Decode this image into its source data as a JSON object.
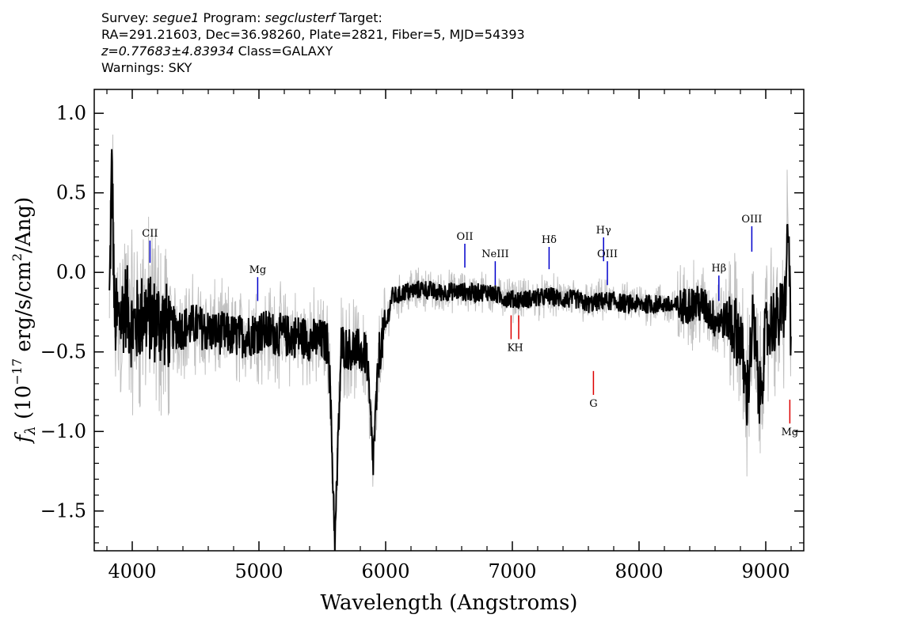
{
  "header": {
    "line1": {
      "survey_label": "Survey: ",
      "survey": "segue1",
      "program_label": " Program: ",
      "program": "segclusterf",
      "target_label": " Target:"
    },
    "line2": "RA=291.21603, Dec=36.98260, Plate=2821, Fiber=5, MJD=54393",
    "line3": {
      "z": "z=0.77683±4.83934",
      "class": " Class=GALAXY"
    },
    "line4": "Warnings: SKY"
  },
  "chart_data": {
    "type": "line",
    "xlabel": "Wavelength (Angstroms)",
    "ylabel": "f_λ (10^-17 erg/s/cm²/Ang)",
    "ylabel_parts": {
      "f": "f",
      "lambda": "λ",
      "pre": " (10",
      "exp": "−17",
      "mid": " erg/s/cm",
      "exp2": "2",
      "post": "/Ang)"
    },
    "xlim": [
      3700,
      9300
    ],
    "ylim": [
      -1.75,
      1.15
    ],
    "xticks": [
      4000,
      5000,
      6000,
      7000,
      8000,
      9000
    ],
    "xtick_labels": [
      "4000",
      "5000",
      "6000",
      "7000",
      "8000",
      "9000"
    ],
    "yticks": [
      1.0,
      0.5,
      0.0,
      -0.5,
      -1.0,
      -1.5
    ],
    "ytick_labels": [
      "1.0",
      "0.5",
      "0.0",
      "−0.5",
      "−1.0",
      "−1.5"
    ],
    "colors": {
      "flux": "#000000",
      "error_band": "#c0c0c0",
      "emission_line": "#0000cc",
      "absorption_line": "#dd0000"
    },
    "series": [
      {
        "role": "flux",
        "x": [
          3820,
          3840,
          3860,
          3900,
          3950,
          4000,
          4050,
          4100,
          4150,
          4200,
          4300,
          4400,
          4500,
          4600,
          4700,
          4800,
          4900,
          5000,
          5100,
          5200,
          5300,
          5400,
          5500,
          5550,
          5600,
          5650,
          5700,
          5750,
          5800,
          5850,
          5900,
          5950,
          6000,
          6050,
          6100,
          6150,
          6200,
          6300,
          6400,
          6500,
          6600,
          6700,
          6800,
          6900,
          7000,
          7100,
          7200,
          7300,
          7400,
          7500,
          7600,
          7700,
          7800,
          7900,
          8000,
          8100,
          8200,
          8300,
          8400,
          8500,
          8600,
          8700,
          8800,
          8850,
          8900,
          8950,
          9000,
          9050,
          9100,
          9150,
          9180,
          9200
        ],
        "y": [
          -0.2,
          0.7,
          -0.3,
          -0.3,
          -0.2,
          -0.35,
          -0.3,
          -0.25,
          -0.3,
          -0.3,
          -0.35,
          -0.35,
          -0.33,
          -0.37,
          -0.38,
          -0.4,
          -0.4,
          -0.37,
          -0.38,
          -0.4,
          -0.4,
          -0.42,
          -0.43,
          -0.45,
          -1.7,
          -0.45,
          -0.48,
          -0.48,
          -0.5,
          -0.52,
          -1.2,
          -0.5,
          -0.35,
          -0.15,
          -0.15,
          -0.12,
          -0.12,
          -0.1,
          -0.13,
          -0.12,
          -0.12,
          -0.13,
          -0.12,
          -0.15,
          -0.17,
          -0.17,
          -0.16,
          -0.15,
          -0.17,
          -0.17,
          -0.2,
          -0.18,
          -0.18,
          -0.2,
          -0.2,
          -0.2,
          -0.2,
          -0.22,
          -0.2,
          -0.2,
          -0.3,
          -0.3,
          -0.4,
          -0.8,
          -0.3,
          -0.8,
          -0.4,
          -0.3,
          -0.3,
          -0.2,
          0.3,
          -0.5
        ]
      }
    ],
    "line_markers": [
      {
        "label": "CII",
        "wavelength": 4140,
        "y_top": 0.2,
        "y_bottom": 0.06,
        "kind": "emission",
        "label_pos": "above"
      },
      {
        "label": "Mg",
        "wavelength": 4990,
        "y_top": -0.03,
        "y_bottom": -0.18,
        "kind": "emission",
        "label_pos": "above"
      },
      {
        "label": "OII",
        "wavelength": 6625,
        "y_top": 0.18,
        "y_bottom": 0.03,
        "kind": "emission",
        "label_pos": "above"
      },
      {
        "label": "NeIII",
        "wavelength": 6865,
        "y_top": 0.07,
        "y_bottom": -0.08,
        "kind": "emission",
        "label_pos": "above"
      },
      {
        "label": "Hδ",
        "wavelength": 7290,
        "y_top": 0.16,
        "y_bottom": 0.02,
        "kind": "emission",
        "label_pos": "above"
      },
      {
        "label": "Hγ",
        "wavelength": 7720,
        "y_top": 0.22,
        "y_bottom": 0.07,
        "kind": "emission",
        "label_pos": "above"
      },
      {
        "label": "OIII",
        "wavelength": 7750,
        "y_top": 0.07,
        "y_bottom": -0.08,
        "kind": "emission",
        "label_pos": "above"
      },
      {
        "label": "Hβ",
        "wavelength": 8630,
        "y_top": -0.02,
        "y_bottom": -0.18,
        "kind": "emission",
        "label_pos": "above"
      },
      {
        "label": "OIII",
        "wavelength": 8890,
        "y_top": 0.29,
        "y_bottom": 0.13,
        "kind": "emission",
        "label_pos": "above"
      },
      {
        "label": "K",
        "wavelength": 6990,
        "y_top": -0.27,
        "y_bottom": -0.42,
        "kind": "absorption",
        "label_pos": "below"
      },
      {
        "label": "H",
        "wavelength": 7050,
        "y_top": -0.27,
        "y_bottom": -0.42,
        "kind": "absorption",
        "label_pos": "below"
      },
      {
        "label": "G",
        "wavelength": 7640,
        "y_top": -0.62,
        "y_bottom": -0.77,
        "kind": "absorption",
        "label_pos": "below"
      },
      {
        "label": "Mg",
        "wavelength": 9190,
        "y_top": -0.8,
        "y_bottom": -0.95,
        "kind": "absorption",
        "label_pos": "below"
      }
    ]
  }
}
